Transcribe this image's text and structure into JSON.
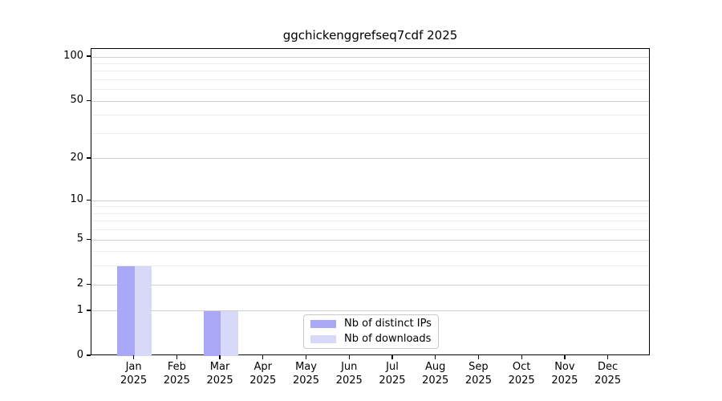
{
  "title": "ggchickenggrefseq7cdf 2025",
  "chart_data": {
    "type": "bar",
    "title": "ggchickenggrefseq7cdf 2025",
    "y_scale": "log1p",
    "grid": true,
    "legend_position": "bottom-center",
    "categories": [
      "Jan",
      "Feb",
      "Mar",
      "Apr",
      "May",
      "Jun",
      "Jul",
      "Aug",
      "Sep",
      "Oct",
      "Nov",
      "Dec"
    ],
    "year_label": "2025",
    "series": [
      {
        "name": "Nb of distinct IPs",
        "color": "#a8a8f7",
        "values": [
          3,
          0,
          1,
          0,
          0,
          0,
          0,
          0,
          0,
          0,
          0,
          0
        ]
      },
      {
        "name": "Nb of downloads",
        "color": "#d8d8f9",
        "values": [
          3,
          0,
          1,
          0,
          0,
          0,
          0,
          0,
          0,
          0,
          0,
          0
        ]
      }
    ],
    "y_ticks": [
      0,
      1,
      2,
      5,
      10,
      20,
      50,
      100
    ],
    "y_minor_gridlines": [
      3,
      4,
      6,
      7,
      8,
      9,
      30,
      40,
      60,
      70,
      80,
      90
    ],
    "ylim": [
      0,
      113
    ]
  },
  "colors": {
    "bar_distinct_ips": "#a8a8f7",
    "bar_downloads": "#d8d8f9",
    "axis": "#000000",
    "major_grid": "#cfcfcf",
    "minor_grid": "#ededed"
  }
}
